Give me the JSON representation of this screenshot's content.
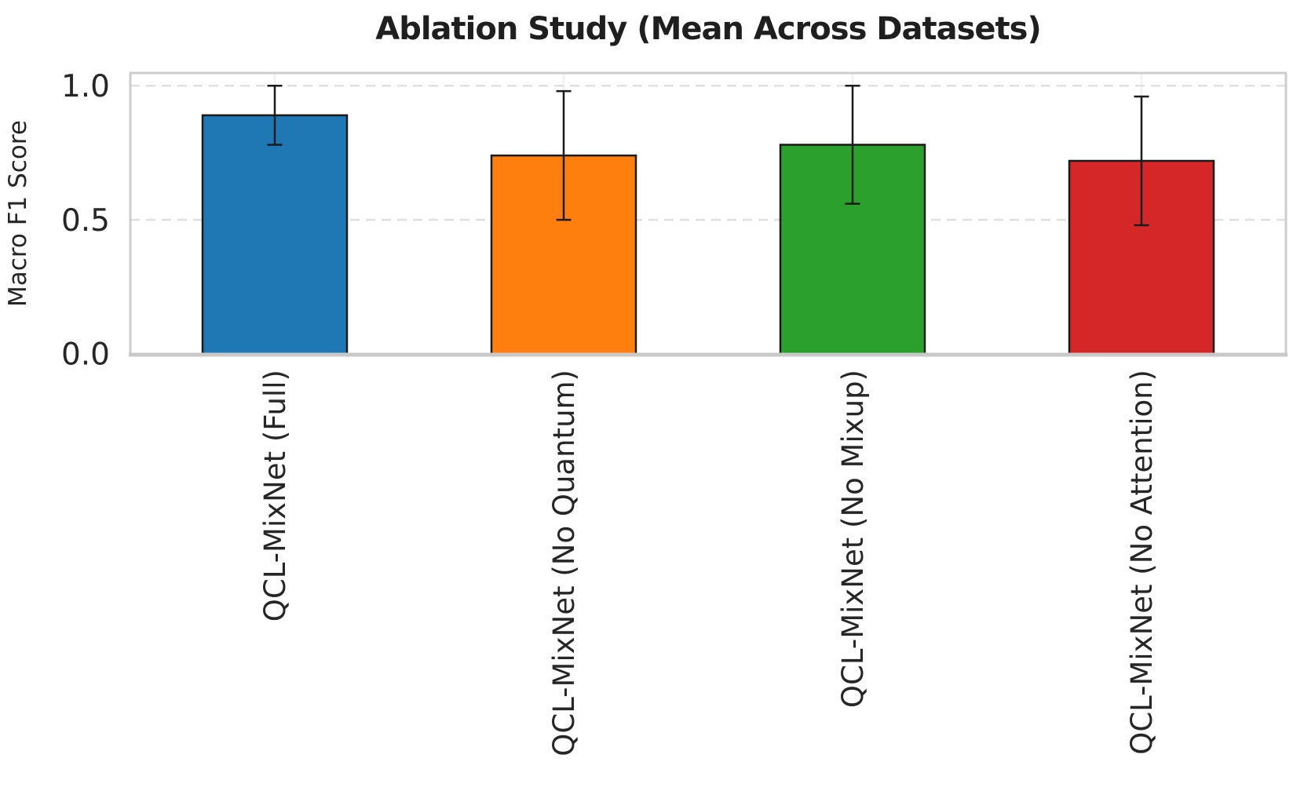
{
  "chart_data": {
    "type": "bar",
    "title": "Ablation Study (Mean Across Datasets)",
    "xlabel": "",
    "ylabel": "Macro F1 Score",
    "categories": [
      "QCL-MixNet (Full)",
      "QCL-MixNet (No Quantum)",
      "QCL-MixNet (No Mixup)",
      "QCL-MixNet (No Attention)"
    ],
    "values": [
      0.89,
      0.74,
      0.78,
      0.72
    ],
    "errors": [
      0.11,
      0.24,
      0.22,
      0.24
    ],
    "bar_colors": [
      "#1f77b4",
      "#ff7f0e",
      "#2ca02c",
      "#d62728"
    ],
    "bar_edge_color": "#1a1a1a",
    "error_bar_color": "#1c1c1c",
    "error_caps": true,
    "ylim": [
      0.0,
      1.048
    ],
    "yticks": [
      0.0,
      0.5,
      1.0
    ],
    "ytick_labels": [
      "0.0",
      "0.5",
      "1.0"
    ],
    "xtick_rotation_degrees": 90,
    "grid": {
      "horizontal": "dashed light-gray at 0.5 and 1.0",
      "vertical": "faint solid light-gray at each bar center"
    },
    "legend": "none",
    "background": "#ffffff"
  }
}
